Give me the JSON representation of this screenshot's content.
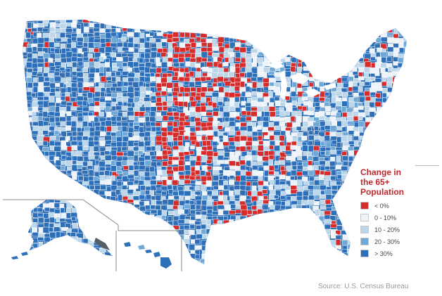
{
  "legend": {
    "title": "Change in the 65+ Population",
    "items": [
      {
        "label": "< 0%",
        "color": "#d62c2c"
      },
      {
        "label": "0 - 10%",
        "color": "#eef3fa"
      },
      {
        "label": "10 - 20%",
        "color": "#bcd6ea"
      },
      {
        "label": "20 - 30%",
        "color": "#6ea8d6"
      },
      {
        "label": "> 30%",
        "color": "#2d6fb8"
      }
    ]
  },
  "source": "Source: U.S. Census Bureau",
  "colors": {
    "decline": "#d62c2c",
    "low": "#eef3fa",
    "mid": "#bcd6ea",
    "high": "#6ea8d6",
    "very_high": "#2d6fb8",
    "border": "#ffffff",
    "inset_line": "#888888",
    "title": "#c0272d"
  }
}
